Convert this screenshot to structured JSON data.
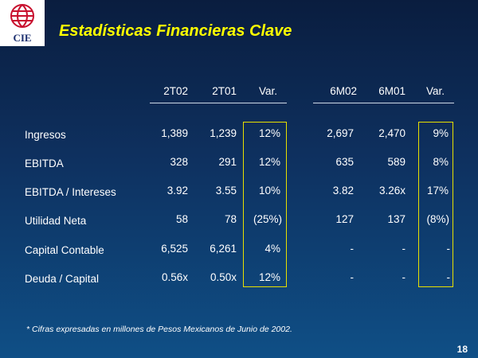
{
  "logo": {
    "text": "CIE"
  },
  "title": "Estadísticas Financieras Clave",
  "headers": [
    "2T02",
    "2T01",
    "Var.",
    "6M02",
    "6M01",
    "Var."
  ],
  "rows": [
    {
      "label": "Ingresos",
      "values": [
        "1,389",
        "1,239",
        "12%",
        "2,697",
        "2,470",
        "9%"
      ]
    },
    {
      "label": "EBITDA",
      "values": [
        "328",
        "291",
        "12%",
        "635",
        "589",
        "8%"
      ]
    },
    {
      "label": "EBITDA / Intereses",
      "values": [
        "3.92",
        "3.55",
        "10%",
        "3.82",
        "3.26x",
        "17%"
      ]
    },
    {
      "label": "Utilidad Neta",
      "values": [
        "58",
        "78",
        "(25%)",
        "127",
        "137",
        "(8%)"
      ]
    },
    {
      "label": "Capital Contable",
      "values": [
        "6,525",
        "6,261",
        "4%",
        "-",
        "-",
        "-"
      ]
    },
    {
      "label": "Deuda / Capital",
      "values": [
        "0.56x",
        "0.50x",
        "12%",
        "-",
        "-",
        "-"
      ]
    }
  ],
  "footnote": "* Cifras expresadas en millones de Pesos Mexicanos de Junio de 2002.",
  "page_number": "18",
  "colors": {
    "title": "#ffff00",
    "box_border": "#e8e000",
    "background_top": "#0a1d3f",
    "background_bottom": "#0f4f86"
  }
}
